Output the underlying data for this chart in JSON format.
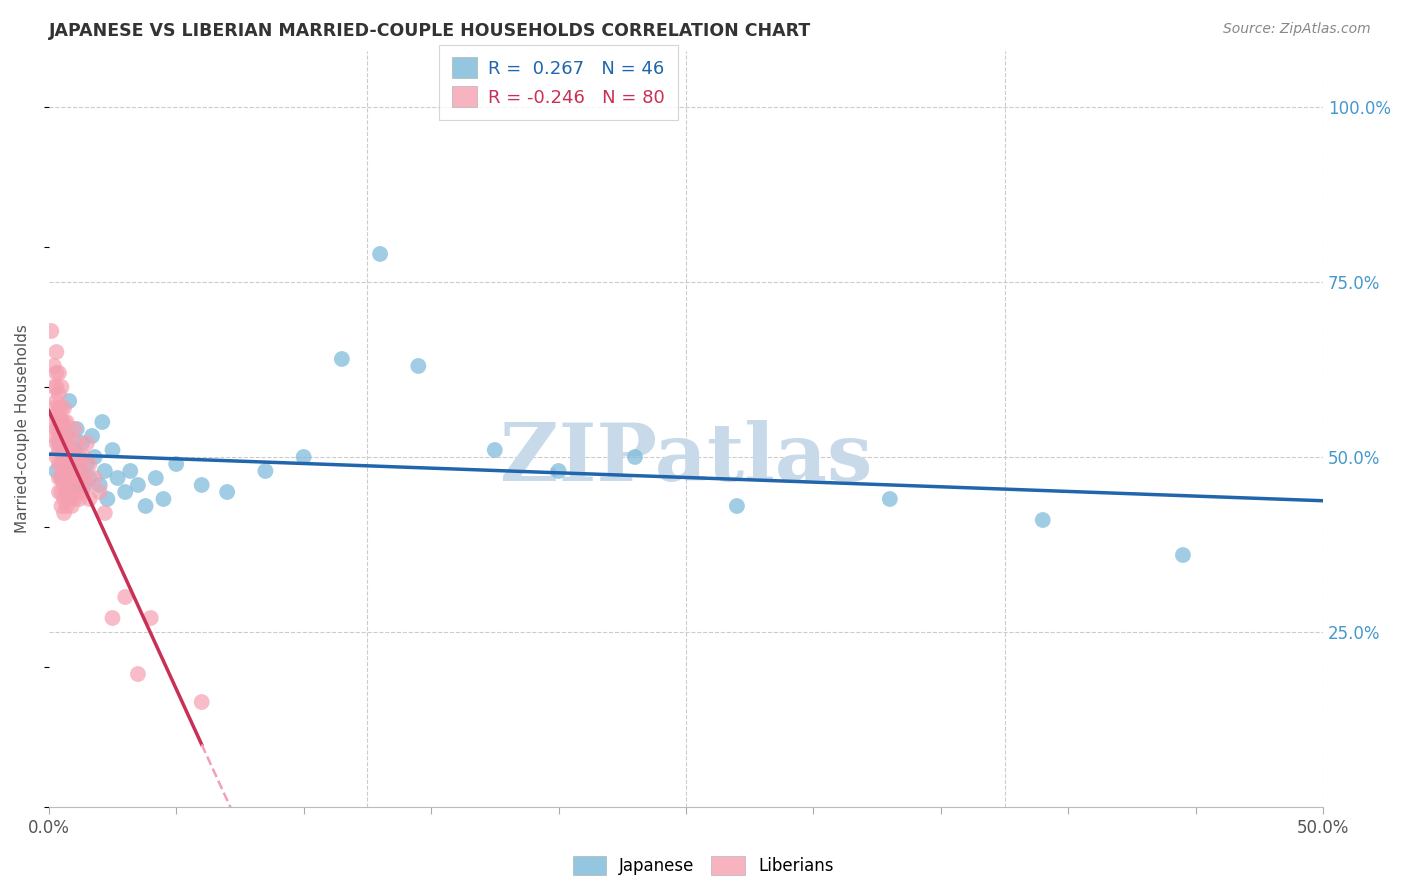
{
  "title": "JAPANESE VS LIBERIAN MARRIED-COUPLE HOUSEHOLDS CORRELATION CHART",
  "source": "Source: ZipAtlas.com",
  "ylabel": "Married-couple Households",
  "ytick_labels": [
    "25.0%",
    "50.0%",
    "75.0%",
    "100.0%"
  ],
  "ytick_values": [
    0.25,
    0.5,
    0.75,
    1.0
  ],
  "xlim": [
    0.0,
    0.5
  ],
  "ylim": [
    0.0,
    1.08
  ],
  "legend_r_japanese": "0.267",
  "legend_n_japanese": "46",
  "legend_r_liberian": "-0.246",
  "legend_n_liberian": "80",
  "japanese_color": "#7ab8d9",
  "liberian_color": "#f5a0b0",
  "trendline_japanese_color": "#2166ac",
  "trendline_liberian_solid_color": "#c93055",
  "trendline_liberian_dashed_color": "#f0a0b8",
  "watermark_color": "#c8daea",
  "watermark_text": "ZIPatlas",
  "japanese_points": [
    [
      0.003,
      0.48
    ],
    [
      0.004,
      0.52
    ],
    [
      0.005,
      0.47
    ],
    [
      0.005,
      0.55
    ],
    [
      0.006,
      0.5
    ],
    [
      0.007,
      0.53
    ],
    [
      0.008,
      0.46
    ],
    [
      0.008,
      0.58
    ],
    [
      0.009,
      0.49
    ],
    [
      0.01,
      0.51
    ],
    [
      0.01,
      0.45
    ],
    [
      0.011,
      0.54
    ],
    [
      0.012,
      0.48
    ],
    [
      0.013,
      0.52
    ],
    [
      0.014,
      0.46
    ],
    [
      0.015,
      0.49
    ],
    [
      0.016,
      0.47
    ],
    [
      0.017,
      0.53
    ],
    [
      0.018,
      0.5
    ],
    [
      0.02,
      0.46
    ],
    [
      0.021,
      0.55
    ],
    [
      0.022,
      0.48
    ],
    [
      0.023,
      0.44
    ],
    [
      0.025,
      0.51
    ],
    [
      0.027,
      0.47
    ],
    [
      0.03,
      0.45
    ],
    [
      0.032,
      0.48
    ],
    [
      0.035,
      0.46
    ],
    [
      0.038,
      0.43
    ],
    [
      0.042,
      0.47
    ],
    [
      0.045,
      0.44
    ],
    [
      0.05,
      0.49
    ],
    [
      0.06,
      0.46
    ],
    [
      0.07,
      0.45
    ],
    [
      0.085,
      0.48
    ],
    [
      0.1,
      0.5
    ],
    [
      0.115,
      0.64
    ],
    [
      0.13,
      0.79
    ],
    [
      0.145,
      0.63
    ],
    [
      0.175,
      0.51
    ],
    [
      0.2,
      0.48
    ],
    [
      0.23,
      0.5
    ],
    [
      0.27,
      0.43
    ],
    [
      0.33,
      0.44
    ],
    [
      0.39,
      0.41
    ],
    [
      0.445,
      0.36
    ]
  ],
  "liberian_points": [
    [
      0.001,
      0.68
    ],
    [
      0.002,
      0.63
    ],
    [
      0.002,
      0.6
    ],
    [
      0.002,
      0.57
    ],
    [
      0.002,
      0.55
    ],
    [
      0.002,
      0.53
    ],
    [
      0.003,
      0.65
    ],
    [
      0.003,
      0.62
    ],
    [
      0.003,
      0.6
    ],
    [
      0.003,
      0.58
    ],
    [
      0.003,
      0.56
    ],
    [
      0.003,
      0.54
    ],
    [
      0.003,
      0.52
    ],
    [
      0.003,
      0.5
    ],
    [
      0.004,
      0.62
    ],
    [
      0.004,
      0.59
    ],
    [
      0.004,
      0.57
    ],
    [
      0.004,
      0.55
    ],
    [
      0.004,
      0.53
    ],
    [
      0.004,
      0.51
    ],
    [
      0.004,
      0.49
    ],
    [
      0.004,
      0.47
    ],
    [
      0.004,
      0.45
    ],
    [
      0.005,
      0.6
    ],
    [
      0.005,
      0.57
    ],
    [
      0.005,
      0.55
    ],
    [
      0.005,
      0.53
    ],
    [
      0.005,
      0.51
    ],
    [
      0.005,
      0.49
    ],
    [
      0.005,
      0.47
    ],
    [
      0.005,
      0.45
    ],
    [
      0.005,
      0.43
    ],
    [
      0.006,
      0.57
    ],
    [
      0.006,
      0.55
    ],
    [
      0.006,
      0.52
    ],
    [
      0.006,
      0.5
    ],
    [
      0.006,
      0.48
    ],
    [
      0.006,
      0.46
    ],
    [
      0.006,
      0.44
    ],
    [
      0.006,
      0.42
    ],
    [
      0.007,
      0.55
    ],
    [
      0.007,
      0.52
    ],
    [
      0.007,
      0.5
    ],
    [
      0.007,
      0.47
    ],
    [
      0.007,
      0.45
    ],
    [
      0.007,
      0.43
    ],
    [
      0.008,
      0.53
    ],
    [
      0.008,
      0.5
    ],
    [
      0.008,
      0.47
    ],
    [
      0.008,
      0.44
    ],
    [
      0.009,
      0.51
    ],
    [
      0.009,
      0.48
    ],
    [
      0.009,
      0.46
    ],
    [
      0.009,
      0.43
    ],
    [
      0.01,
      0.54
    ],
    [
      0.01,
      0.5
    ],
    [
      0.01,
      0.47
    ],
    [
      0.01,
      0.44
    ],
    [
      0.011,
      0.52
    ],
    [
      0.011,
      0.49
    ],
    [
      0.011,
      0.45
    ],
    [
      0.012,
      0.5
    ],
    [
      0.012,
      0.47
    ],
    [
      0.012,
      0.44
    ],
    [
      0.013,
      0.48
    ],
    [
      0.013,
      0.45
    ],
    [
      0.014,
      0.5
    ],
    [
      0.014,
      0.47
    ],
    [
      0.015,
      0.52
    ],
    [
      0.015,
      0.46
    ],
    [
      0.016,
      0.49
    ],
    [
      0.016,
      0.44
    ],
    [
      0.018,
      0.47
    ],
    [
      0.02,
      0.45
    ],
    [
      0.022,
      0.42
    ],
    [
      0.025,
      0.27
    ],
    [
      0.03,
      0.3
    ],
    [
      0.035,
      0.19
    ],
    [
      0.04,
      0.27
    ],
    [
      0.06,
      0.15
    ]
  ]
}
